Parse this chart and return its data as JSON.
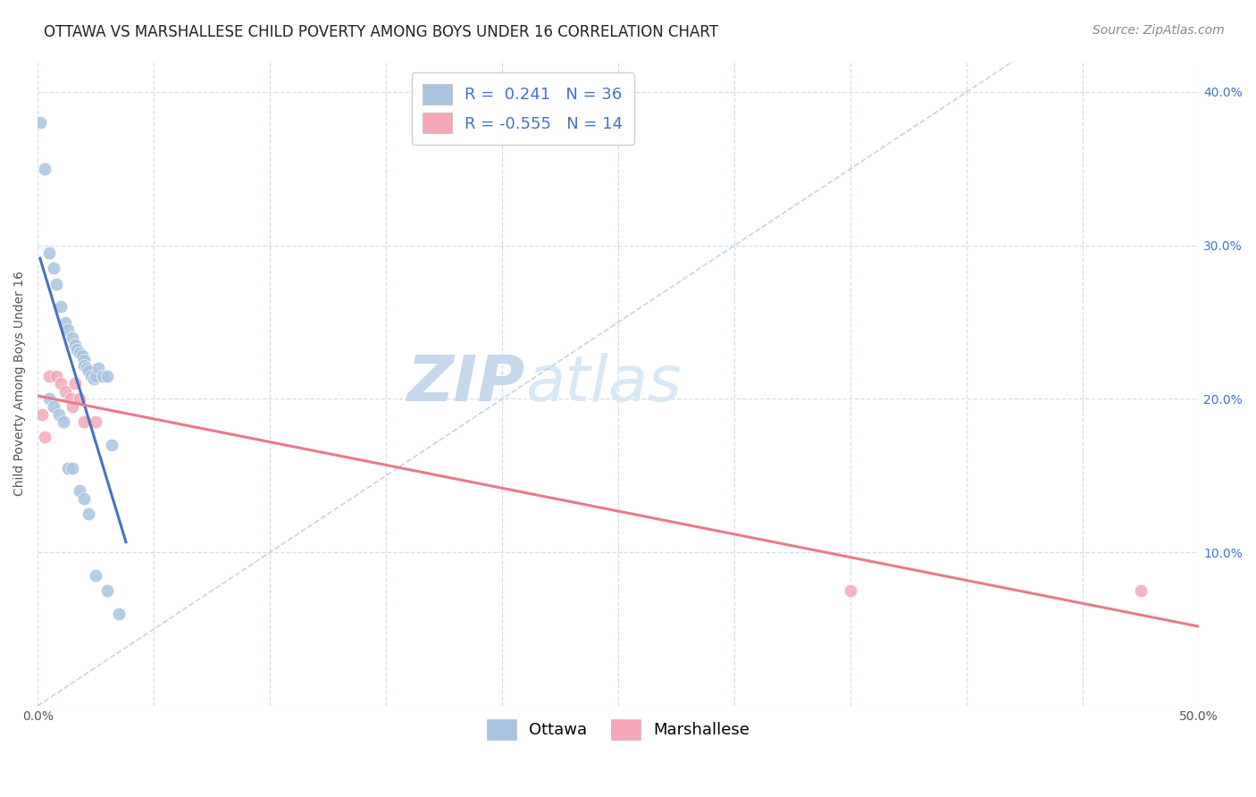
{
  "title": "OTTAWA VS MARSHALLESE CHILD POVERTY AMONG BOYS UNDER 16 CORRELATION CHART",
  "source": "Source: ZipAtlas.com",
  "ylabel": "Child Poverty Among Boys Under 16",
  "watermark_zip": "ZIP",
  "watermark_atlas": "atlas",
  "xlim": [
    0.0,
    0.5
  ],
  "ylim": [
    0.0,
    0.42
  ],
  "xticks": [
    0.0,
    0.05,
    0.1,
    0.15,
    0.2,
    0.25,
    0.3,
    0.35,
    0.4,
    0.45,
    0.5
  ],
  "yticks": [
    0.0,
    0.1,
    0.2,
    0.3,
    0.4
  ],
  "legend_entries": [
    {
      "label": "Ottawa",
      "R": "0.241",
      "N": "36",
      "color": "#a8c4e0"
    },
    {
      "label": "Marshallese",
      "R": "-0.555",
      "N": "14",
      "color": "#f4a8b8"
    }
  ],
  "ottawa_x": [
    0.001,
    0.003,
    0.005,
    0.007,
    0.008,
    0.01,
    0.012,
    0.013,
    0.015,
    0.016,
    0.017,
    0.018,
    0.019,
    0.02,
    0.02,
    0.021,
    0.022,
    0.023,
    0.024,
    0.025,
    0.026,
    0.028,
    0.03,
    0.032,
    0.005,
    0.007,
    0.009,
    0.011,
    0.013,
    0.015,
    0.018,
    0.02,
    0.022,
    0.025,
    0.03,
    0.035
  ],
  "ottawa_y": [
    0.38,
    0.35,
    0.295,
    0.285,
    0.275,
    0.26,
    0.25,
    0.245,
    0.24,
    0.235,
    0.232,
    0.23,
    0.228,
    0.225,
    0.222,
    0.22,
    0.218,
    0.215,
    0.213,
    0.215,
    0.22,
    0.215,
    0.215,
    0.17,
    0.2,
    0.195,
    0.19,
    0.185,
    0.155,
    0.155,
    0.14,
    0.135,
    0.125,
    0.085,
    0.075,
    0.06
  ],
  "marshallese_x": [
    0.002,
    0.003,
    0.005,
    0.008,
    0.01,
    0.012,
    0.014,
    0.015,
    0.016,
    0.018,
    0.02,
    0.025,
    0.35,
    0.475
  ],
  "marshallese_y": [
    0.19,
    0.175,
    0.215,
    0.215,
    0.21,
    0.205,
    0.2,
    0.195,
    0.21,
    0.2,
    0.185,
    0.185,
    0.075,
    0.075
  ],
  "ottawa_color": "#a8c4e0",
  "marshallese_color": "#f4a8b8",
  "trend_ottawa_color": "#4472c4",
  "trend_marshallese_color": "#e87a8c",
  "diagonal_color": "#c0cfe0",
  "background_color": "#ffffff",
  "grid_color": "#d0daea",
  "title_fontsize": 12,
  "axis_label_fontsize": 10,
  "tick_fontsize": 10,
  "source_fontsize": 10,
  "legend_fontsize": 13,
  "watermark_fontsize": 52,
  "marker_size": 110
}
